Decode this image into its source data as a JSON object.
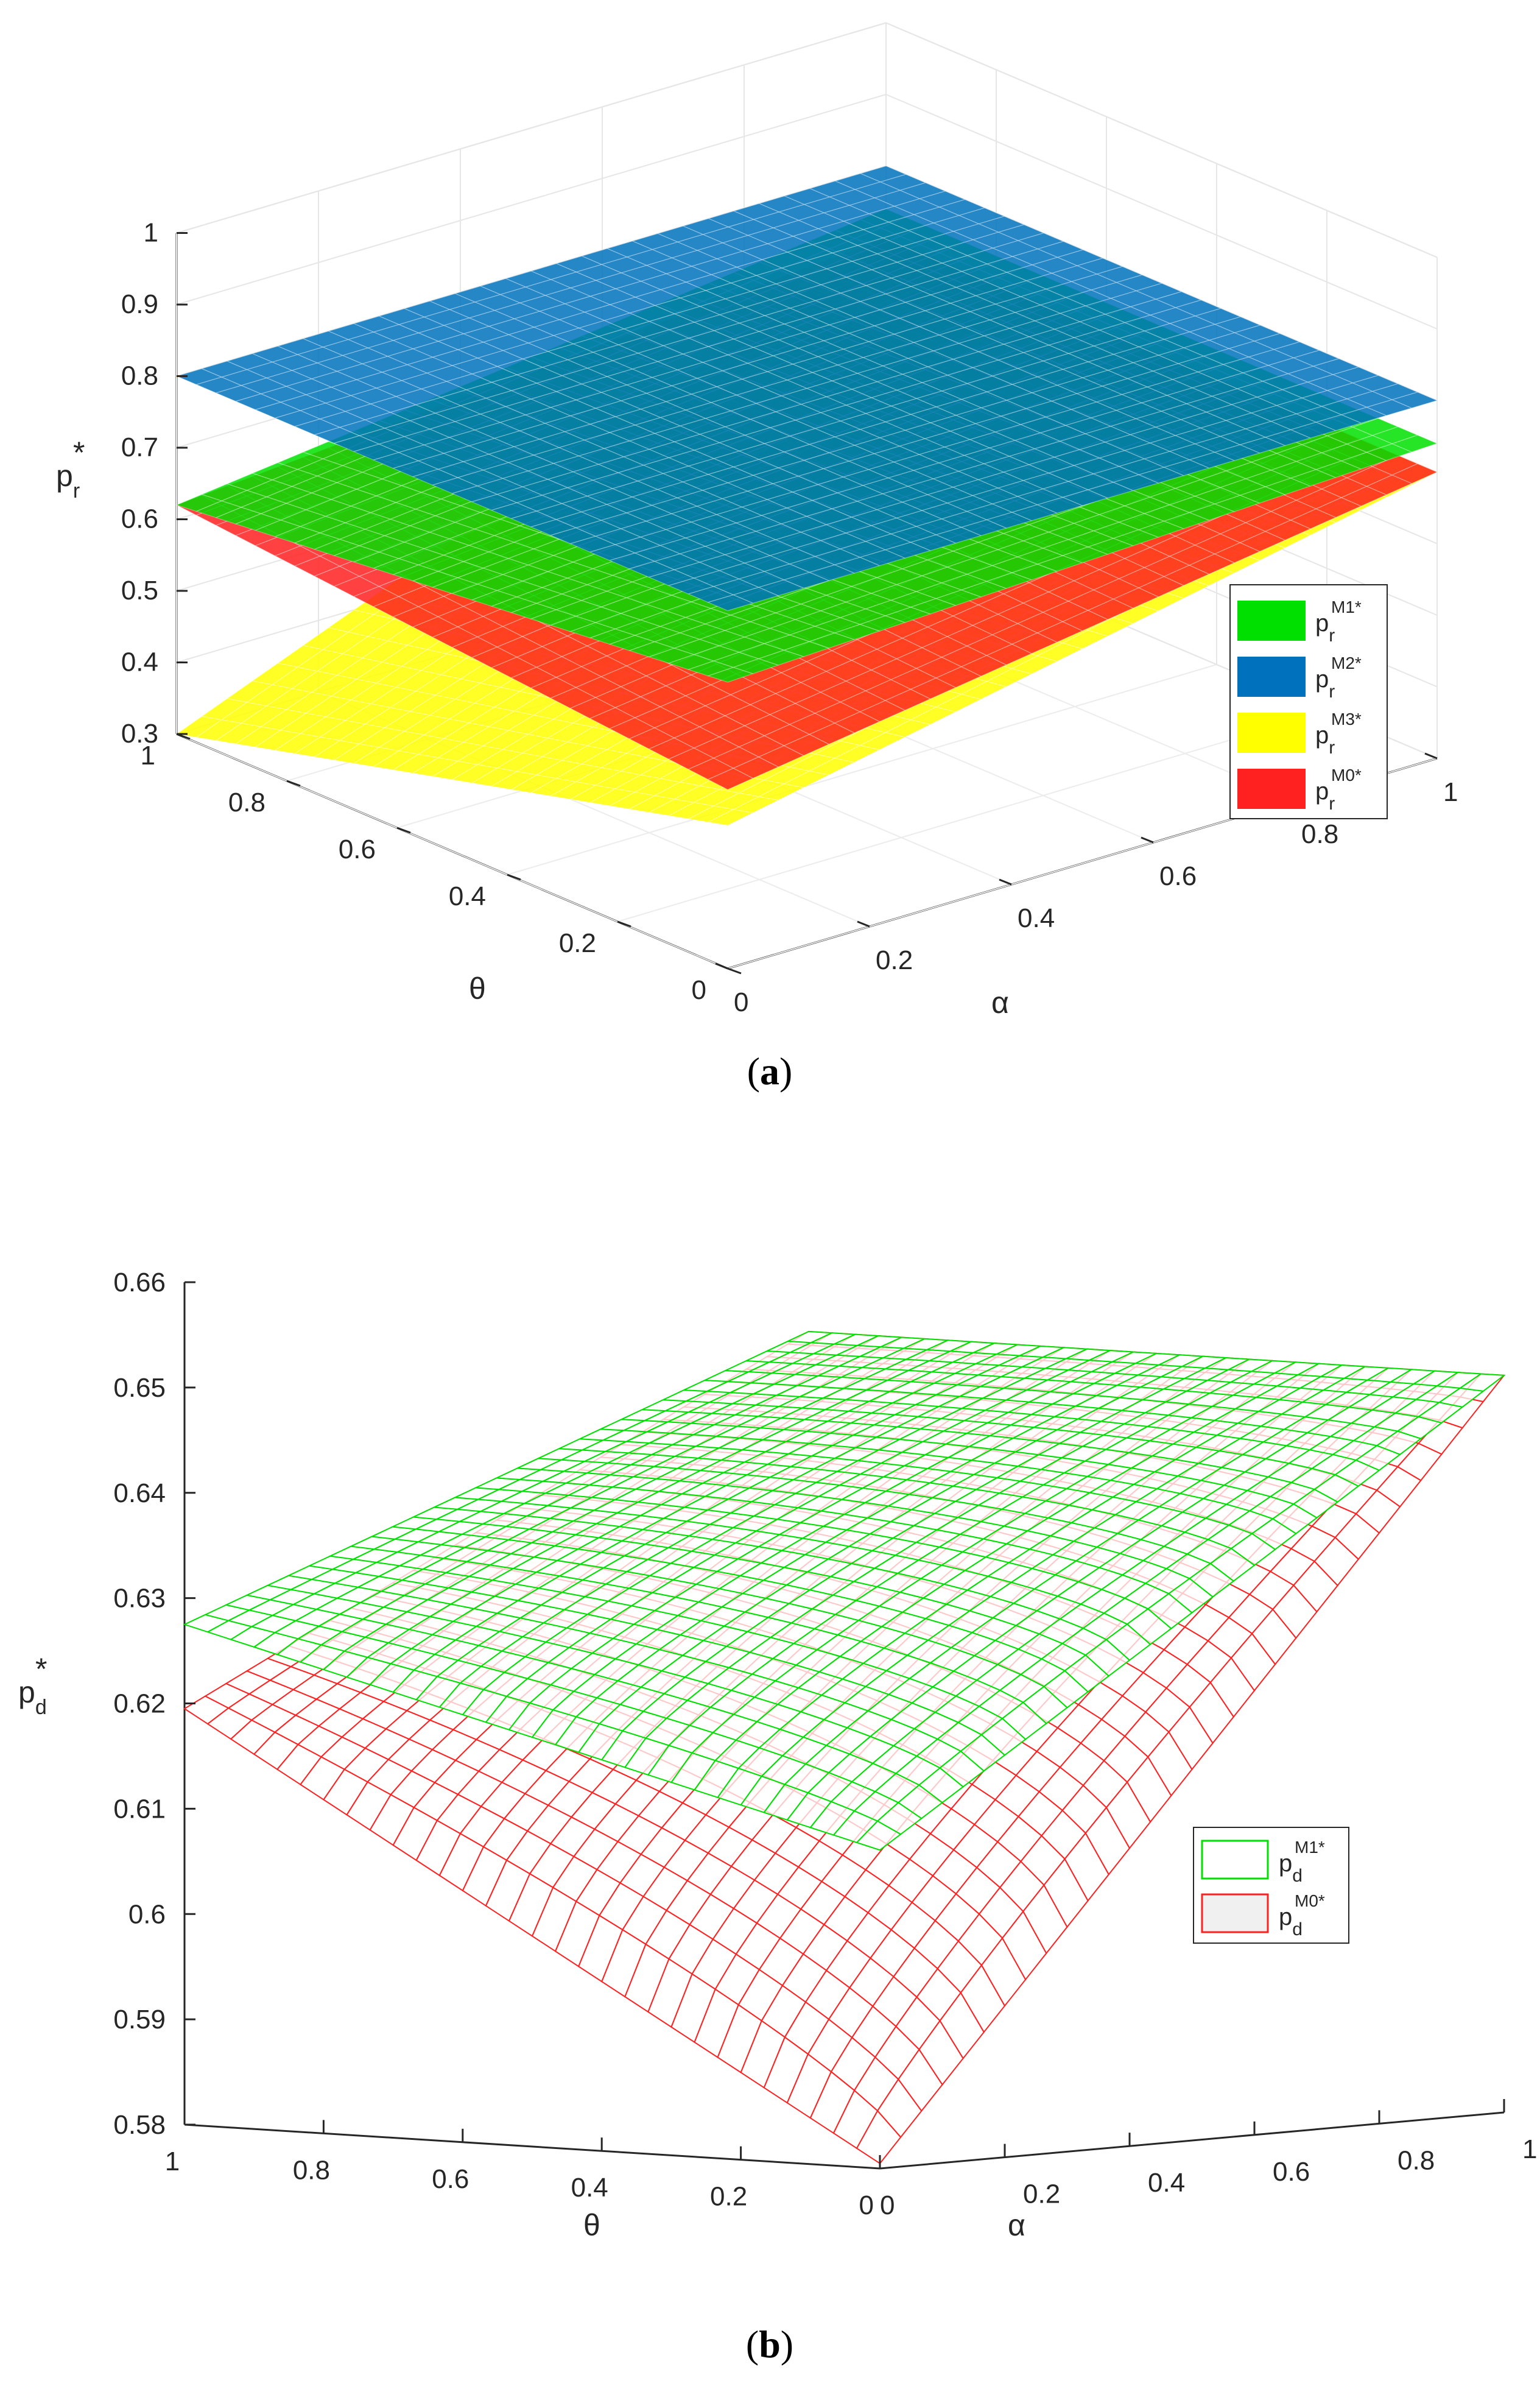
{
  "chart_data": [
    {
      "type": "surface",
      "panel": "a",
      "caption": "(a)",
      "zlabel": "p",
      "zlabel_sub": "r",
      "zlabel_sup": "*",
      "xlabel": "α",
      "ylabel": "θ",
      "zlim": [
        0.3,
        1
      ],
      "xlim": [
        0,
        1
      ],
      "ylim": [
        0,
        1
      ],
      "z_ticks": [
        "0.3",
        "0.4",
        "0.5",
        "0.6",
        "0.7",
        "0.8",
        "0.9",
        "1"
      ],
      "x_ticks": [
        "0",
        "0.2",
        "0.4",
        "0.6",
        "0.8",
        "1"
      ],
      "y_ticks": [
        "0",
        "0.2",
        "0.4",
        "0.6",
        "0.8",
        "1"
      ],
      "grid": true,
      "legend_position": "right",
      "series": [
        {
          "name": "M1",
          "label": "p",
          "sub": "r",
          "sup": "M1*",
          "color": "#00e000",
          "corners": {
            "a0t0": 0.7,
            "a1t0": 0.74,
            "a0t1": 0.62,
            "a1t1": 0.74
          }
        },
        {
          "name": "M2",
          "label": "p",
          "sub": "r",
          "sup": "M2*",
          "color": "#0072bd",
          "corners": {
            "a0t0": 0.8,
            "a1t0": 0.8,
            "a0t1": 0.8,
            "a1t1": 0.8
          }
        },
        {
          "name": "M3",
          "label": "p",
          "sub": "r",
          "sup": "M3*",
          "color": "#ffff00",
          "corners": {
            "a0t0": 0.5,
            "a1t0": 0.7,
            "a0t1": 0.3,
            "a1t1": 0.7
          }
        },
        {
          "name": "M0",
          "label": "p",
          "sub": "r",
          "sup": "M0*",
          "color": "#ff2020",
          "corners": {
            "a0t0": 0.55,
            "a1t0": 0.7,
            "a0t1": 0.62,
            "a1t1": 0.7
          }
        }
      ]
    },
    {
      "type": "surface",
      "panel": "b",
      "caption": "(b)",
      "zlabel": "p",
      "zlabel_sub": "d",
      "zlabel_sup": "*",
      "xlabel": "α",
      "ylabel": "θ",
      "zlim": [
        0.58,
        0.66
      ],
      "xlim": [
        0,
        1
      ],
      "ylim": [
        0,
        1
      ],
      "z_ticks": [
        "0.58",
        "0.59",
        "0.6",
        "0.61",
        "0.62",
        "0.63",
        "0.64",
        "0.65",
        "0.66"
      ],
      "x_ticks": [
        "0",
        "0.2",
        "0.4",
        "0.6",
        "0.8",
        "1"
      ],
      "y_ticks": [
        "1",
        "0.8",
        "0.6",
        "0.4",
        "0.2",
        "0"
      ],
      "grid": false,
      "legend_position": "right",
      "series": [
        {
          "name": "M1",
          "label": "p",
          "sub": "d",
          "sup": "M1*",
          "color": "#00e000",
          "corners": {
            "a0t0": 0.61,
            "a1t0": 0.65,
            "a0t1": 0.6275,
            "a1t1": 0.65
          }
        },
        {
          "name": "M0",
          "label": "p",
          "sub": "d",
          "sup": "M0*",
          "color": "#ff2020",
          "corners": {
            "a0t0": 0.58,
            "a1t0": 0.65,
            "a0t1": 0.6195,
            "a1t1": 0.65
          }
        }
      ]
    }
  ]
}
